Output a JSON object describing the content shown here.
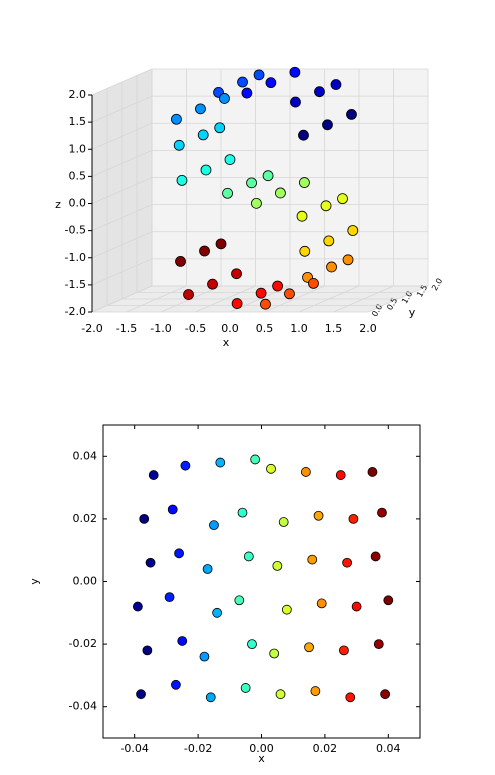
{
  "chart_data": [
    {
      "type": "scatter3d",
      "xlabel": "x",
      "ylabel": "y",
      "zlabel": "z",
      "colormap": "jet",
      "edgecolor": "#000000",
      "xlim": [
        -2,
        2
      ],
      "ylim": [
        0,
        2
      ],
      "zlim": [
        -2,
        2
      ],
      "xticks": [
        {
          "value": -2,
          "label": "-2.0"
        },
        -1.5,
        {
          "value": -1,
          "label": "-1.0"
        },
        -0.5,
        {
          "value": 0,
          "label": "0.0"
        },
        0.5,
        {
          "value": 1,
          "label": "1.0"
        },
        1.5,
        {
          "value": 2,
          "label": "2.0"
        }
      ],
      "yticks": [
        {
          "value": 0,
          "label": "0.0"
        },
        0.5,
        {
          "value": 1,
          "label": "1.0"
        },
        1.5,
        {
          "value": 2,
          "label": "2.0"
        }
      ],
      "zticks": [
        {
          "value": -2,
          "label": "-2.0"
        },
        -1.5,
        {
          "value": -1,
          "label": "-1.0"
        },
        -0.5,
        {
          "value": 0,
          "label": "0.0"
        },
        0.5,
        {
          "value": 1,
          "label": "1.0"
        },
        1.5,
        {
          "value": 2,
          "label": "2.0"
        }
      ],
      "x": [
        0.978,
        0.978,
        0.978,
        0.688,
        0.688,
        0.688,
        0.158,
        0.158,
        0.158,
        -0.427,
        -0.427,
        -0.427,
        -0.863,
        -0.863,
        -0.863,
        -0.997,
        -0.997,
        -0.997,
        -0.783,
        -0.783,
        -0.783,
        -0.296,
        -0.296,
        -0.296,
        0.296,
        0.296,
        0.296,
        0.783,
        0.783,
        0.783,
        0.997,
        0.997,
        0.997,
        0.863,
        0.863,
        0.863,
        0.427,
        0.427,
        0.427,
        -0.158,
        -0.158,
        -0.158,
        -0.688,
        -0.688,
        -0.688,
        -0.978,
        -0.978,
        -0.978
      ],
      "y": [
        0.2,
        1.0,
        1.8,
        0.6,
        1.4,
        1.95,
        0.2,
        1.0,
        1.8,
        0.6,
        1.4,
        1.95,
        0.2,
        1.0,
        1.8,
        0.6,
        1.4,
        1.95,
        0.2,
        1.0,
        1.8,
        0.6,
        1.4,
        1.95,
        0.2,
        1.0,
        1.8,
        0.6,
        1.4,
        1.95,
        0.2,
        1.0,
        1.8,
        0.6,
        1.4,
        1.95,
        0.2,
        1.0,
        1.8,
        0.6,
        1.4,
        1.95,
        0.2,
        1.0,
        1.8,
        0.6,
        1.4,
        1.95
      ],
      "z": [
        1.211,
        1.211,
        1.211,
        1.726,
        1.726,
        1.726,
        1.988,
        1.988,
        1.988,
        1.904,
        1.904,
        1.904,
        1.505,
        1.505,
        1.505,
        0.929,
        0.929,
        0.929,
        0.378,
        0.378,
        0.378,
        0.045,
        0.045,
        0.045,
        -0.045,
        -0.045,
        -0.045,
        -0.378,
        -0.378,
        -0.378,
        -0.929,
        -0.929,
        -0.929,
        -1.505,
        -1.505,
        -1.505,
        -1.904,
        -1.904,
        -1.904,
        -1.988,
        -1.988,
        -1.988,
        -1.726,
        -1.726,
        -1.726,
        -1.211,
        -1.211,
        -1.211
      ],
      "c": [
        -4.5,
        -4.5,
        -4.5,
        -3.9,
        -3.9,
        -3.9,
        -3.3,
        -3.3,
        -3.3,
        -2.7,
        -2.7,
        -2.7,
        -2.1,
        -2.1,
        -2.1,
        -1.5,
        -1.5,
        -1.5,
        -0.9,
        -0.9,
        -0.9,
        -0.3,
        -0.3,
        -0.3,
        0.3,
        0.3,
        0.3,
        0.9,
        0.9,
        0.9,
        1.5,
        1.5,
        1.5,
        2.1,
        2.1,
        2.1,
        2.7,
        2.7,
        2.7,
        3.3,
        3.3,
        3.3,
        3.9,
        3.9,
        3.9,
        4.5,
        4.5,
        4.5
      ]
    },
    {
      "type": "scatter",
      "xlabel": "x",
      "ylabel": "y",
      "colormap": "jet",
      "edgecolor": "#000000",
      "xlim": [
        -0.05,
        0.05
      ],
      "ylim": [
        -0.05,
        0.05
      ],
      "xticks": [
        -0.04,
        -0.02,
        {
          "value": 0,
          "label": "0.00"
        },
        0.02,
        0.04
      ],
      "yticks": [
        -0.04,
        -0.02,
        {
          "value": 0,
          "label": "0.00"
        },
        0.02,
        0.04
      ],
      "x": [
        -0.038,
        -0.036,
        -0.039,
        -0.035,
        -0.037,
        -0.034,
        -0.027,
        -0.025,
        -0.029,
        -0.026,
        -0.028,
        -0.024,
        -0.016,
        -0.018,
        -0.014,
        -0.017,
        -0.015,
        -0.013,
        -0.005,
        -0.003,
        -0.007,
        -0.004,
        -0.006,
        -0.002,
        0.006,
        0.004,
        0.008,
        0.005,
        0.007,
        0.003,
        0.017,
        0.015,
        0.019,
        0.016,
        0.018,
        0.014,
        0.028,
        0.026,
        0.03,
        0.027,
        0.029,
        0.025,
        0.039,
        0.037,
        0.04,
        0.036,
        0.038,
        0.035
      ],
      "y": [
        -0.036,
        -0.022,
        -0.008,
        0.006,
        0.02,
        0.034,
        -0.033,
        -0.019,
        -0.005,
        0.009,
        0.023,
        0.037,
        -0.037,
        -0.024,
        -0.01,
        0.004,
        0.018,
        0.038,
        -0.034,
        -0.02,
        -0.006,
        0.008,
        0.022,
        0.039,
        -0.036,
        -0.023,
        -0.009,
        0.005,
        0.019,
        0.036,
        -0.035,
        -0.021,
        -0.007,
        0.007,
        0.021,
        0.035,
        -0.037,
        -0.022,
        -0.008,
        0.006,
        0.02,
        0.034,
        -0.036,
        -0.02,
        -0.006,
        0.008,
        0.022,
        0.035
      ],
      "c": [
        -4.4,
        -4.5,
        -4.3,
        -4.4,
        -4.5,
        -4.3,
        -3.2,
        -3.3,
        -3.1,
        -3.2,
        -3.3,
        -3.1,
        -1.9,
        -2.0,
        -1.8,
        -1.9,
        -2.0,
        -1.8,
        -0.6,
        -0.7,
        -0.5,
        -0.6,
        -0.7,
        -0.5,
        0.7,
        0.6,
        0.8,
        0.7,
        0.6,
        0.8,
        2.0,
        1.9,
        2.1,
        2.0,
        1.9,
        2.1,
        3.2,
        3.1,
        3.3,
        3.2,
        3.1,
        3.3,
        4.4,
        4.3,
        4.5,
        4.4,
        4.3,
        4.5
      ]
    }
  ]
}
